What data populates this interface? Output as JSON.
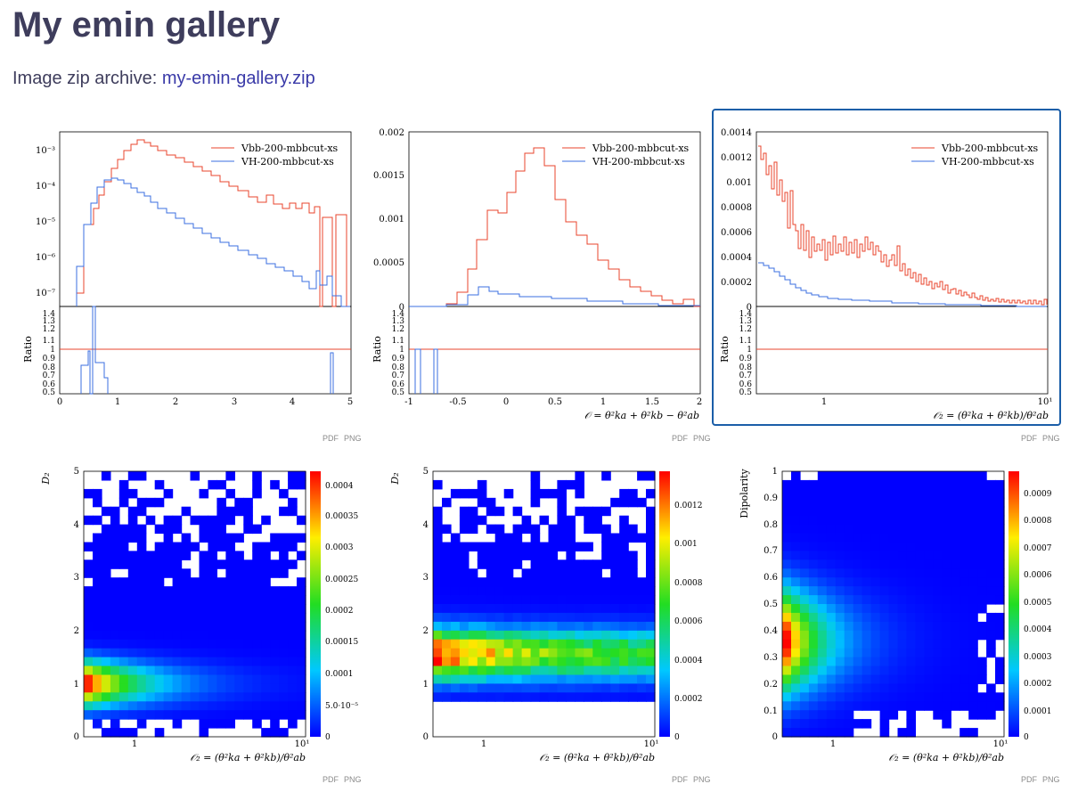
{
  "page": {
    "title": "My emin gallery",
    "zip_prefix": "Image zip archive: ",
    "zip_link": "my-emin-gallery.zip"
  },
  "plots": [
    {
      "pdf": "PDF",
      "png": "PNG",
      "legend": [
        "Vbb-200-mbbcut-xs",
        "VH-200-mbbcut-xs"
      ],
      "ratio_label": "Ratio",
      "yticks": [
        "10⁻³",
        "10⁻⁴",
        "10⁻⁵",
        "10⁻⁶",
        "10⁻⁷"
      ],
      "xticks": [
        "0",
        "1",
        "2",
        "3",
        "4",
        "5"
      ],
      "rticks": [
        "1.4",
        "1.3",
        "1.2",
        "1.1",
        "1",
        "0.9",
        "0.8",
        "0.7",
        "0.6",
        "0.5"
      ],
      "xlabel": ""
    },
    {
      "pdf": "PDF",
      "png": "PNG",
      "legend": [
        "Vbb-200-mbbcut-xs",
        "VH-200-mbbcut-xs"
      ],
      "ratio_label": "Ratio",
      "yticks": [
        "0.002",
        "0.0015",
        "0.001",
        "0.0005",
        "0"
      ],
      "xticks": [
        "-1",
        "-0.5",
        "0",
        "0.5",
        "1",
        "1.5",
        "2"
      ],
      "rticks": [
        "1.4",
        "1.3",
        "1.2",
        "1.1",
        "1",
        "0.9",
        "0.8",
        "0.7",
        "0.6",
        "0.5"
      ],
      "xlabel": "𝒪 = θ²ka + θ²kb − θ²ab"
    },
    {
      "pdf": "PDF",
      "png": "PNG",
      "legend": [
        "Vbb-200-mbbcut-xs",
        "VH-200-mbbcut-xs"
      ],
      "ratio_label": "Ratio",
      "yticks": [
        "0.0014",
        "0.0012",
        "0.001",
        "0.0008",
        "0.0006",
        "0.0004",
        "0.0002",
        "0"
      ],
      "xticks": [
        "1",
        "10¹"
      ],
      "rticks": [
        "1.4",
        "1.3",
        "1.2",
        "1.1",
        "1",
        "0.9",
        "0.8",
        "0.7",
        "0.6",
        "0.5"
      ],
      "xlabel": "𝒪₂ = (θ²ka + θ²kb)/θ²ab"
    },
    {
      "pdf": "PDF",
      "png": "PNG",
      "ylabel": "D₂",
      "yticks": [
        "5",
        "4",
        "3",
        "2",
        "1",
        "0"
      ],
      "xticks": [
        "1",
        "10¹"
      ],
      "cticks": [
        "0.0004",
        "0.00035",
        "0.0003",
        "0.00025",
        "0.0002",
        "0.00015",
        "0.0001",
        "5.0·10⁻⁵",
        "0"
      ],
      "xlabel": "𝒪₂ = (θ²ka + θ²kb)/θ²ab"
    },
    {
      "pdf": "PDF",
      "png": "PNG",
      "ylabel": "D₂",
      "yticks": [
        "5",
        "4",
        "3",
        "2",
        "1",
        "0"
      ],
      "xticks": [
        "1",
        "10¹"
      ],
      "cticks": [
        "0.0012",
        "0.001",
        "0.0008",
        "0.0006",
        "0.0004",
        "0.0002",
        "0"
      ],
      "xlabel": "𝒪₂ = (θ²ka + θ²kb)/θ²ab"
    },
    {
      "pdf": "PDF",
      "png": "PNG",
      "ylabel": "Dipolarity",
      "yticks": [
        "1",
        "0.9",
        "0.8",
        "0.7",
        "0.6",
        "0.5",
        "0.4",
        "0.3",
        "0.2",
        "0.1",
        "0"
      ],
      "xticks": [
        "1",
        "10¹"
      ],
      "cticks": [
        "0.0009",
        "0.0008",
        "0.0007",
        "0.0006",
        "0.0005",
        "0.0004",
        "0.0003",
        "0.0002",
        "0.0001",
        "0"
      ],
      "xlabel": "𝒪₂ = (θ²ka + θ²kb)/θ²ab"
    }
  ],
  "colors": {
    "red": "#e8442c",
    "blue": "#3b6fe0",
    "heading": "#3e3d5c",
    "link": "#3a3aa8",
    "selected_border": "#1b5ea8"
  }
}
